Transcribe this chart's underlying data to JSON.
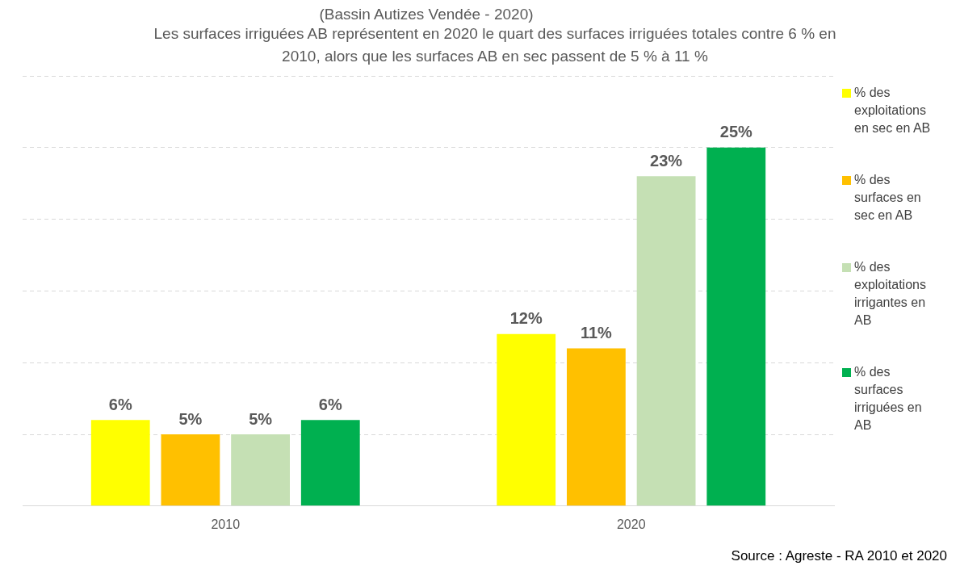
{
  "chart_data": {
    "type": "bar",
    "subtitle": "(Bassin Autizes Vendée - 2020)",
    "title": "Les surfaces irriguées AB représentent en 2020 le quart des surfaces irriguées totales contre 6 % en 2010, alors que les surfaces AB en sec passent de 5 % à 11 %",
    "categories": [
      "2010",
      "2020"
    ],
    "series": [
      {
        "name": "% des exploitations en sec en AB",
        "color": "#ffff00",
        "values": [
          6,
          12
        ],
        "value_labels": [
          "6%",
          "12%"
        ]
      },
      {
        "name": "% des surfaces en sec en AB",
        "color": "#ffc000",
        "values": [
          5,
          11
        ],
        "value_labels": [
          "5%",
          "11%"
        ]
      },
      {
        "name": "% des exploitations irrigantes en AB",
        "color": "#c5e0b4",
        "values": [
          5,
          23
        ],
        "value_labels": [
          "5%",
          "23%"
        ]
      },
      {
        "name": "% des surfaces irriguées en AB",
        "color": "#00b050",
        "values": [
          6,
          25
        ],
        "value_labels": [
          "6%",
          "25%"
        ]
      }
    ],
    "tick_labels": "x",
    "grid": "y",
    "legend": "right",
    "annotations": [
      "Source : Agreste  - RA 2010 et 2020"
    ]
  }
}
